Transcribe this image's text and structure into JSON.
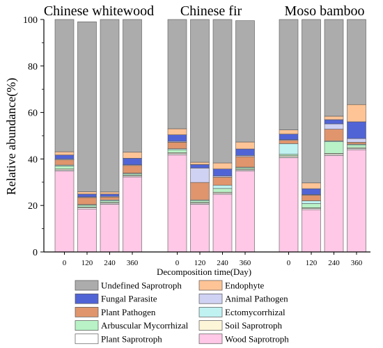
{
  "chart_data": {
    "type": "bar",
    "stacked": true,
    "ylabel": "Relative abundance(%)",
    "xlabel": "Decomposition time(Day)",
    "ylim": [
      0,
      100
    ],
    "yticks": [
      0,
      20,
      40,
      60,
      80,
      100
    ],
    "legend_placement": "bottom",
    "groups": [
      {
        "title": "Chinese whitewood",
        "categories": [
          "0",
          "120",
          "240",
          "360"
        ]
      },
      {
        "title": "Chinese fir",
        "categories": [
          "0",
          "120",
          "240",
          "360"
        ]
      },
      {
        "title": "Moso bamboo",
        "categories": [
          "0",
          "120",
          "240",
          "360"
        ]
      }
    ],
    "series": [
      {
        "name": "Wood Saprotroph",
        "color": "#ffc8e6",
        "values": [
          [
            34.8,
            18.5,
            20.5,
            32.3
          ],
          [
            41.8,
            20.5,
            24.8,
            34.8
          ],
          [
            40.5,
            18.2,
            41.5,
            44.0
          ]
        ]
      },
      {
        "name": "Plant Saprotroph",
        "color": "#ffffff",
        "values": [
          [
            0.5,
            0.5,
            0.5,
            0.4
          ],
          [
            0.5,
            0.5,
            0.5,
            0.5
          ],
          [
            0.5,
            0.5,
            0.5,
            0.5
          ]
        ]
      },
      {
        "name": "Soil Saprotroph",
        "color": "#fdf5d8",
        "values": [
          [
            0.4,
            0.3,
            0.3,
            0.3
          ],
          [
            0.4,
            0.3,
            0.4,
            0.3
          ],
          [
            0.4,
            0.3,
            0.4,
            0.4
          ]
        ]
      },
      {
        "name": "Arbuscular Mycorrhizal",
        "color": "#b8f2c6",
        "values": [
          [
            1.3,
            0.8,
            0.7,
            0.6
          ],
          [
            1.3,
            0.8,
            1.6,
            0.6
          ],
          [
            0.6,
            1.8,
            5.0,
            1.2
          ]
        ]
      },
      {
        "name": "Ectomycorrhizal",
        "color": "#c0f2f2",
        "values": [
          [
            0.4,
            0.3,
            0.4,
            0.3
          ],
          [
            0.4,
            0.3,
            1.4,
            0.3
          ],
          [
            4.6,
            1.2,
            0.4,
            0.3
          ]
        ]
      },
      {
        "name": "Plant Pathogen",
        "color": "#e0956c",
        "values": [
          [
            2.2,
            3.0,
            1.2,
            3.3
          ],
          [
            2.8,
            7.5,
            3.5,
            4.5
          ],
          [
            1.4,
            2.4,
            5.0,
            0.8
          ]
        ]
      },
      {
        "name": "Animal Pathogen",
        "color": "#d0d2f4",
        "values": [
          [
            0.4,
            0.3,
            0.3,
            0.3
          ],
          [
            0.4,
            6.2,
            0.5,
            0.5
          ],
          [
            0.3,
            0.3,
            2.3,
            1.6
          ]
        ]
      },
      {
        "name": "Fungal Parasite",
        "color": "#5164d6",
        "values": [
          [
            1.7,
            1.2,
            1.0,
            2.8
          ],
          [
            2.8,
            1.5,
            3.0,
            2.8
          ],
          [
            2.4,
            2.5,
            1.8,
            7.2
          ]
        ]
      },
      {
        "name": "Endophyte",
        "color": "#ffc496",
        "values": [
          [
            1.4,
            1.0,
            0.9,
            2.6
          ],
          [
            2.6,
            1.0,
            2.6,
            3.0
          ],
          [
            1.8,
            2.5,
            1.5,
            7.4
          ]
        ]
      },
      {
        "name": "Undefined Saprotroph",
        "color": "#acacac",
        "values": [
          [
            56.9,
            73.1,
            74.2,
            57.1
          ],
          [
            47.0,
            61.4,
            61.7,
            52.2
          ],
          [
            47.5,
            70.3,
            41.6,
            36.6
          ]
        ]
      }
    ]
  }
}
